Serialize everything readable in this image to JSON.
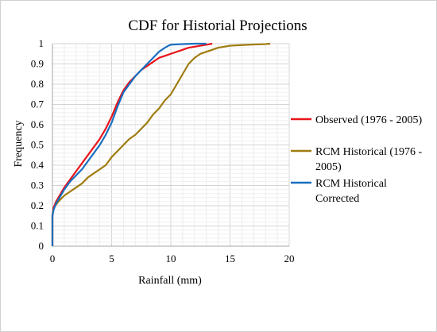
{
  "chart_data": {
    "type": "line",
    "title": "CDF for Historial Projections",
    "xlabel": "Rainfall (mm)",
    "ylabel": "Frequency",
    "xlim": [
      0,
      20
    ],
    "ylim": [
      0,
      1
    ],
    "xticks": [
      "0",
      "5",
      "10",
      "15",
      "20"
    ],
    "yticks": [
      "0",
      "0.1",
      "0.2",
      "0.3",
      "0.4",
      "0.5",
      "0.6",
      "0.7",
      "0.8",
      "0.9",
      "1"
    ],
    "grid": true,
    "legend_position": "right",
    "series": [
      {
        "name": "Observed (1976 - 2005)",
        "name_lines": [
          "Observed (1976 - 2005)"
        ],
        "color": "#e8151b",
        "x": [
          0,
          0.1,
          0.3,
          0.6,
          1.0,
          1.5,
          2.0,
          2.5,
          3.0,
          3.5,
          4.0,
          4.5,
          5.0,
          5.5,
          6.0,
          6.5,
          7.0,
          7.5,
          8.0,
          8.5,
          9.0,
          9.5,
          10.0,
          10.5,
          11.0,
          11.5,
          12.0,
          12.5,
          13.0,
          13.5
        ],
        "y": [
          0.15,
          0.19,
          0.22,
          0.25,
          0.29,
          0.33,
          0.37,
          0.41,
          0.45,
          0.49,
          0.53,
          0.58,
          0.64,
          0.71,
          0.77,
          0.81,
          0.84,
          0.87,
          0.89,
          0.91,
          0.93,
          0.94,
          0.95,
          0.96,
          0.97,
          0.98,
          0.985,
          0.99,
          0.995,
          1.0
        ]
      },
      {
        "name": "RCM Historical (1976 - 2005)",
        "name_lines": [
          "RCM Historical (1976 -",
          "2005)"
        ],
        "color": "#a07c10",
        "x": [
          0,
          0.1,
          0.5,
          1.0,
          1.5,
          2.0,
          2.5,
          3.0,
          3.5,
          4.0,
          4.5,
          5.0,
          5.5,
          6.0,
          6.5,
          7.0,
          7.5,
          8.0,
          8.5,
          9.0,
          9.5,
          10.0,
          10.5,
          11.0,
          11.5,
          12.0,
          12.5,
          13.0,
          13.5,
          14.0,
          15.0,
          16.0,
          17.0,
          18.0,
          18.4
        ],
        "y": [
          0.15,
          0.19,
          0.22,
          0.25,
          0.27,
          0.29,
          0.31,
          0.34,
          0.36,
          0.38,
          0.4,
          0.44,
          0.47,
          0.5,
          0.53,
          0.55,
          0.58,
          0.61,
          0.65,
          0.68,
          0.72,
          0.75,
          0.8,
          0.85,
          0.9,
          0.93,
          0.95,
          0.96,
          0.97,
          0.98,
          0.99,
          0.993,
          0.996,
          0.998,
          1.0
        ]
      },
      {
        "name": "RCM Historical Corrected",
        "name_lines": [
          "RCM Historical",
          "Corrected"
        ],
        "color": "#1a6fc0",
        "x": [
          0,
          0.1,
          0.3,
          0.6,
          1.0,
          1.5,
          2.0,
          2.5,
          3.0,
          3.5,
          4.0,
          4.5,
          5.0,
          5.5,
          6.0,
          6.5,
          7.0,
          7.5,
          8.0,
          8.5,
          9.0,
          9.5,
          9.8,
          10.0,
          11.0,
          12.0,
          13.0
        ],
        "y": [
          0.15,
          0.18,
          0.21,
          0.24,
          0.28,
          0.32,
          0.35,
          0.38,
          0.42,
          0.46,
          0.5,
          0.55,
          0.61,
          0.69,
          0.76,
          0.8,
          0.84,
          0.87,
          0.9,
          0.93,
          0.96,
          0.98,
          0.99,
          0.995,
          0.998,
          1.0,
          1.0
        ]
      }
    ]
  }
}
